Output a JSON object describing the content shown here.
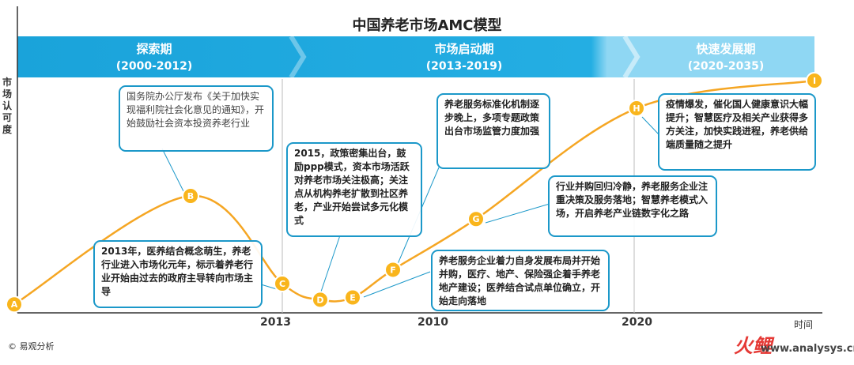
{
  "title": "中国养老市场AMC模型",
  "ylabel": "市场认可度",
  "xlabel": "时间",
  "phases": [
    {
      "name": "探索期",
      "range": "(2000-2012)"
    },
    {
      "name": "市场启动期",
      "range": "(2013-2019)"
    },
    {
      "name": "快速发展期",
      "range": "(2020-2035)"
    }
  ],
  "ticks": [
    "2013",
    "2010",
    "2020"
  ],
  "points": [
    "A",
    "B",
    "C",
    "D",
    "E",
    "F",
    "G",
    "H",
    "I"
  ],
  "callouts": [
    "国务院办公厅发布《关于加快实现福利院社会化意见的通知》，开始鼓励社会资本投资养老行业",
    "2013年，医养结合概念萌生，养老行业进入市场化元年，标示着养老行业开始由过去的政府主导转向市场主导",
    "2015，政策密集出台，鼓励ppp模式，资本市场活跃对养老市场关注极高；关注点从机构养老扩散到社区养老，产业开始尝试多元化模式",
    "养老服务标准化机制逐步晚上，多项专题政策出台市场监管力度加强",
    "养老服务企业着力自身发展布局并开始并购，医疗、地产、保险强企着手养老地产建设；医养结合试点单位确立，开始走向落地",
    "行业并购回归冷静，养老服务企业注重决策及服务落地；智慧养老模式入场，开启养老产业链数字化之路",
    "疫情爆发，催化国人健康意识大幅提升；智慧医疗及相关产业获得多方关注，加快实践进程，养老供给端质量随之提升"
  ],
  "footer": "© 易观分析",
  "logo": "火鲤",
  "url": "www.analysys.cn",
  "colors": {
    "accent": "#1b98c9",
    "curve": "#f5a623",
    "node": "#f9b51c",
    "phase_light": "#7fd3f3"
  },
  "chart_data": {
    "type": "line",
    "title": "中国养老市场AMC模型",
    "xlabel": "时间",
    "ylabel": "市场认可度",
    "x_ticks": [
      "2013",
      "2010",
      "2020"
    ],
    "points": [
      {
        "label": "A",
        "y": 0.03
      },
      {
        "label": "B",
        "y": 0.5
      },
      {
        "label": "C",
        "y": 0.12
      },
      {
        "label": "D",
        "y": 0.05
      },
      {
        "label": "E",
        "y": 0.06
      },
      {
        "label": "F",
        "y": 0.18
      },
      {
        "label": "G",
        "y": 0.4
      },
      {
        "label": "H",
        "y": 0.88
      },
      {
        "label": "I",
        "y": 1.0
      }
    ],
    "ylim": [
      0,
      1
    ],
    "grid": false,
    "legend": "none"
  }
}
